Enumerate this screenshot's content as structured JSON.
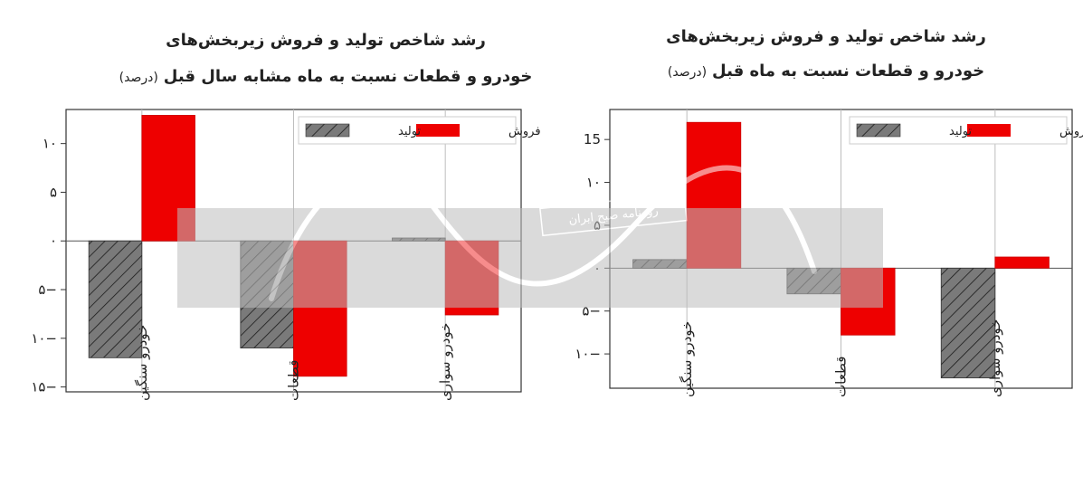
{
  "watermark": {
    "label": "روزنامه صبح ایران"
  },
  "colors": {
    "production": "#7a7a7a",
    "sales": "#ee0000",
    "axis": "#333333",
    "grid": "#bdbdbd"
  },
  "chart_data": [
    {
      "type": "bar",
      "title_line1": "رشد شاخص تولید و فروش زیربخش‌های",
      "title_line2": "خودرو و قطعات نسبت به ماه مشابه سال قبل",
      "title_unit": "(درصد)",
      "categories": [
        "خودرو سنگین",
        "قطعات",
        "خودرو سواری"
      ],
      "series": [
        {
          "name": "تولید",
          "values": [
            -12,
            -11,
            0.3
          ]
        },
        {
          "name": "فروش",
          "values": [
            12.9,
            -13.9,
            -7.6
          ]
        }
      ],
      "ylim": [
        -15.5,
        13.5
      ],
      "yticks": [
        -15,
        -10,
        -5,
        0,
        5,
        10
      ],
      "ytick_labels": [
        "۱۵−",
        "۱۰−",
        "۵−",
        "۰",
        "۵",
        "۱۰"
      ],
      "grid": "vertical",
      "legend": "top-right"
    },
    {
      "type": "bar",
      "title_line1": "رشد شاخص تولید و فروش زیربخش‌های",
      "title_line2": "خودرو و قطعات نسبت به ماه قبل",
      "title_unit": "(درصد)",
      "categories": [
        "خودرو سنگین",
        "قطعات",
        "خودرو سواری"
      ],
      "series": [
        {
          "name": "تولید",
          "values": [
            1,
            -3,
            -12.8
          ]
        },
        {
          "name": "فروش",
          "values": [
            17,
            -7.8,
            1.3
          ]
        }
      ],
      "ylim": [
        -14,
        18.5
      ],
      "yticks": [
        -10,
        -5,
        0,
        5,
        10,
        15
      ],
      "ytick_labels": [
        "۱۰−",
        "۵−",
        "۰",
        "۵",
        "۱۰",
        "15"
      ],
      "grid": "vertical",
      "legend": "top-right"
    }
  ]
}
